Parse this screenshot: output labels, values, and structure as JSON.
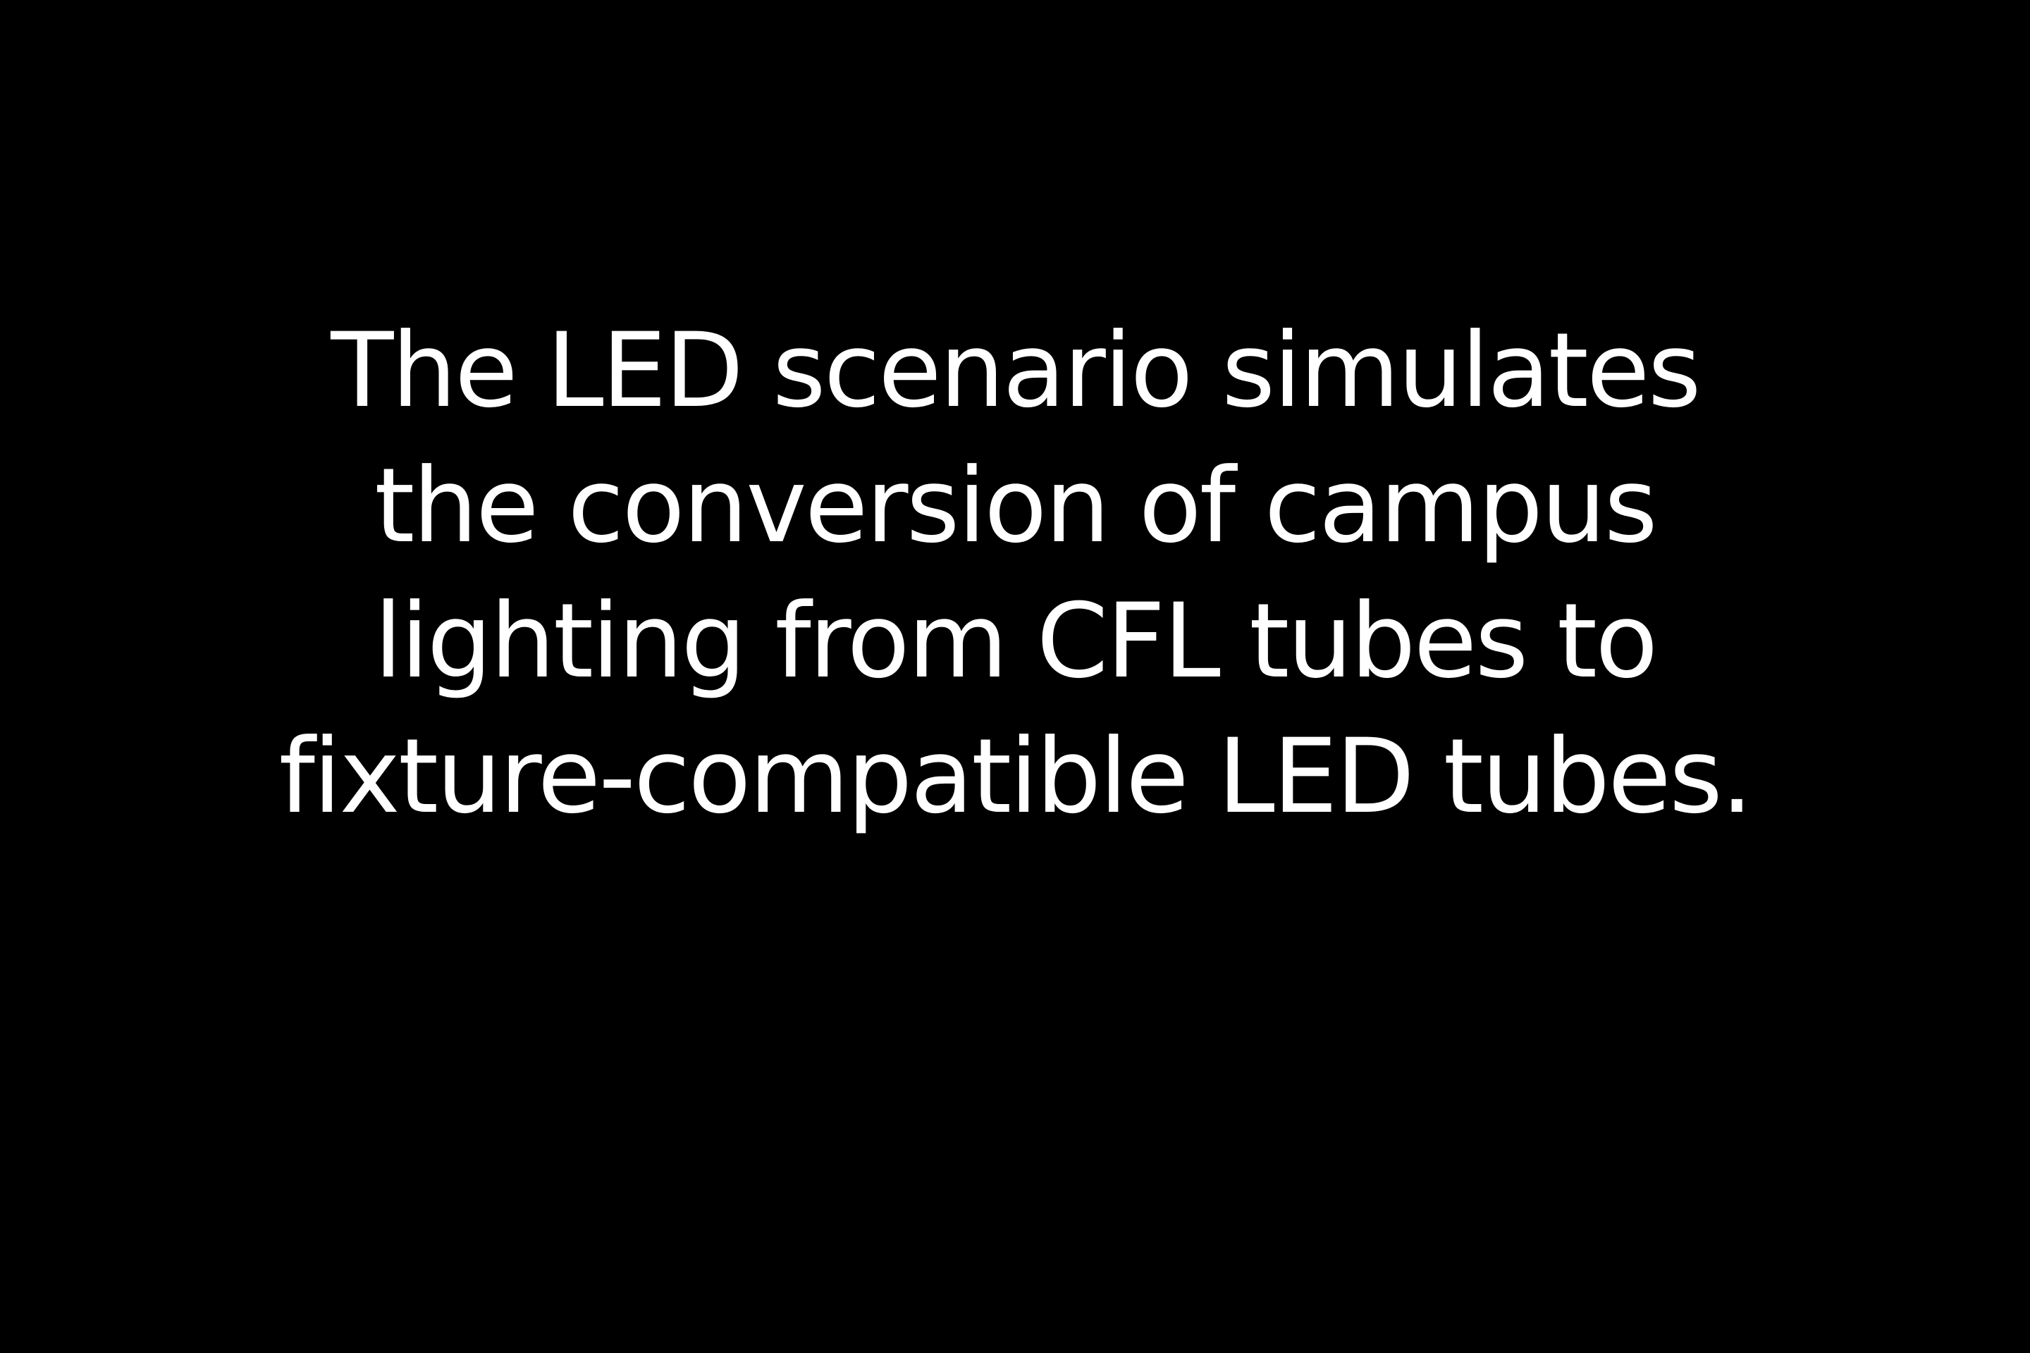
{
  "colors": {
    "background": "#000000",
    "text": "#ffffff"
  },
  "slide": {
    "lines": [
      "The LED scenario simulates",
      "the conversion of campus",
      "lighting from CFL tubes to",
      "fixture-compatible LED tubes."
    ]
  }
}
